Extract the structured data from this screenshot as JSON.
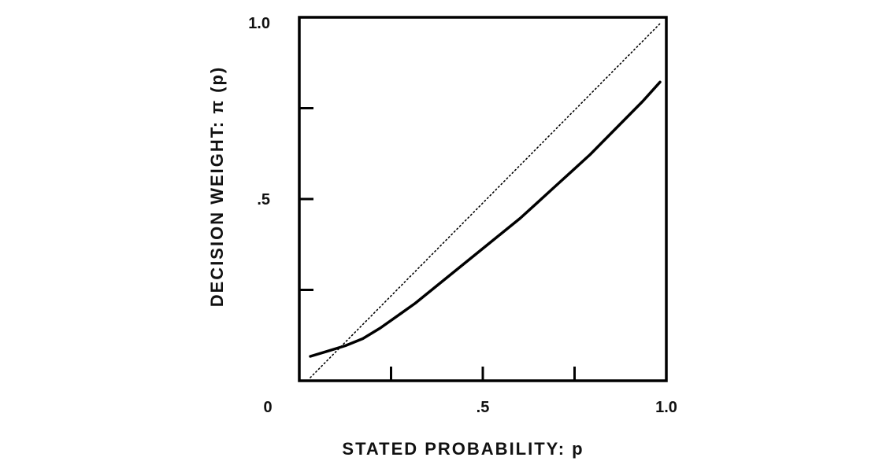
{
  "chart_data": {
    "type": "line",
    "title": "",
    "xlabel": "STATED PROBABILITY: p",
    "ylabel": "DECISION WEIGHT: π (p)",
    "xlim": [
      0,
      1.0
    ],
    "ylim": [
      0,
      1.0
    ],
    "x_tick_labels": [
      {
        "value": 0,
        "label": "0"
      },
      {
        "value": 0.5,
        "label": ".5"
      },
      {
        "value": 1.0,
        "label": "1.0"
      }
    ],
    "y_tick_labels": [
      {
        "value": 0.5,
        "label": ".5"
      },
      {
        "value": 1.0,
        "label": "1.0"
      }
    ],
    "x_ticks": [
      0.25,
      0.5,
      0.75
    ],
    "y_ticks": [
      0.25,
      0.5,
      0.75
    ],
    "grid": false,
    "series": [
      {
        "style": "solid",
        "color": "#000000",
        "x": [
          0.0,
          0.05,
          0.1,
          0.15,
          0.2,
          0.25,
          0.3,
          0.35,
          0.4,
          0.45,
          0.5,
          0.55,
          0.6,
          0.65,
          0.7,
          0.75,
          0.8,
          0.85,
          0.9,
          0.95,
          1.0
        ],
        "y": [
          0.06,
          0.075,
          0.09,
          0.11,
          0.14,
          0.175,
          0.21,
          0.25,
          0.29,
          0.33,
          0.37,
          0.41,
          0.45,
          0.495,
          0.54,
          0.585,
          0.63,
          0.68,
          0.73,
          0.78,
          0.835
        ]
      },
      {
        "style": "dotted",
        "color": "#000000",
        "x": [
          0.0,
          1.0
        ],
        "y": [
          0.0,
          1.0
        ]
      }
    ]
  }
}
